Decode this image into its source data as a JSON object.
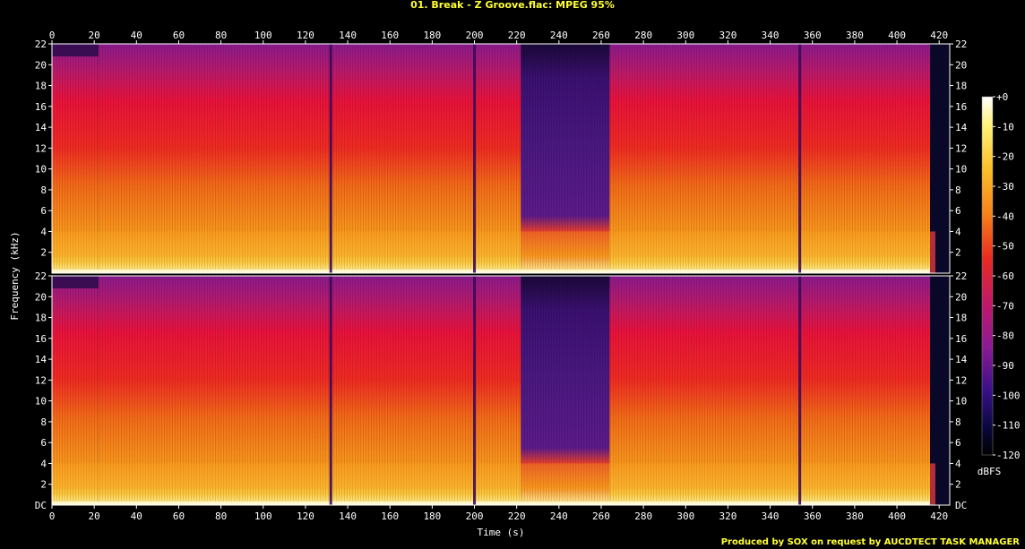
{
  "title": "01. Break - Z Groove.flac: MPEG 95%",
  "footer": "Produced by SOX on request by AUCDTECT TASK MANAGER",
  "chart_data": {
    "type": "heatmap",
    "title": "01. Break - Z Groove.flac: MPEG 95%",
    "xlabel": "Time (s)",
    "ylabel": "Frequency (kHz)",
    "colorbar_label": "dBFS",
    "xlim": [
      0,
      425
    ],
    "ylim": [
      0,
      22
    ],
    "x_ticks": [
      0,
      20,
      40,
      60,
      80,
      100,
      120,
      140,
      160,
      180,
      200,
      220,
      240,
      260,
      280,
      300,
      320,
      340,
      360,
      380,
      400,
      420
    ],
    "y_tick_labels": [
      "DC",
      "2",
      "4",
      "6",
      "8",
      "10",
      "12",
      "14",
      "16",
      "18",
      "20",
      "22"
    ],
    "y_tick_values": [
      0,
      2,
      4,
      6,
      8,
      10,
      12,
      14,
      16,
      18,
      20,
      22
    ],
    "colorbar_ticks": [
      "+0",
      "-10",
      "-20",
      "-30",
      "-40",
      "-50",
      "-60",
      "-70",
      "-80",
      "-90",
      "-100",
      "-110",
      "-120"
    ],
    "colorbar_values": [
      0,
      -10,
      -20,
      -30,
      -40,
      -50,
      -60,
      -70,
      -80,
      -90,
      -100,
      -110,
      -120
    ],
    "channels": 2,
    "segments": [
      {
        "start": 0,
        "end": 22,
        "level": "high"
      },
      {
        "start": 22,
        "end": 132,
        "level": "high"
      },
      {
        "start": 132,
        "end": 200,
        "level": "high"
      },
      {
        "start": 200,
        "end": 222,
        "level": "high"
      },
      {
        "start": 222,
        "end": 264,
        "level": "low"
      },
      {
        "start": 264,
        "end": 354,
        "level": "high"
      },
      {
        "start": 354,
        "end": 425,
        "level": "high"
      }
    ],
    "dropouts": [
      132,
      200,
      354
    ]
  }
}
